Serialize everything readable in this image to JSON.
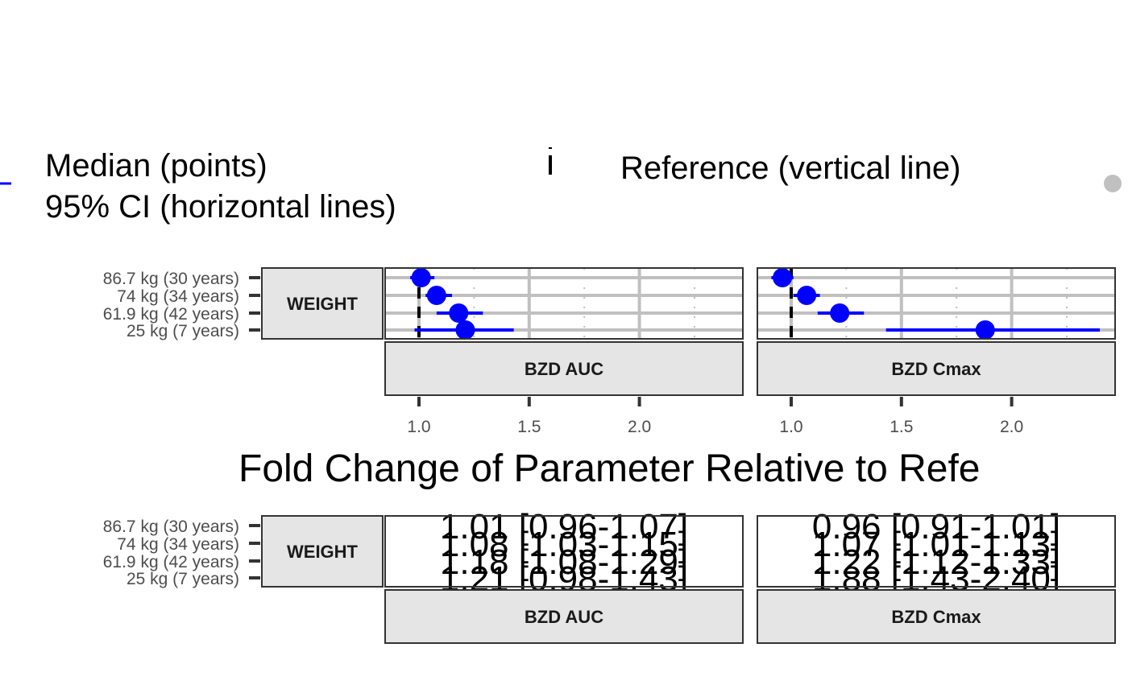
{
  "legend": {
    "median_label": "Median (points)",
    "ci_label": "95% CI (horizontal lines)",
    "reference_label": "Reference (vertical line)"
  },
  "colors": {
    "median": "#0000ff",
    "reference": "#000000",
    "strip_fill": "#e5e5e5",
    "grid": "#c0c0c0",
    "text": "#4d4d4d"
  },
  "chart_data": {
    "type": "scatter",
    "title": "Fold Change of Parameter Relative to Refe",
    "xlabel": "Fold Change of Parameter Relative to Refe",
    "row_strip": "WEIGHT",
    "categories": [
      "86.7 kg (30 years)",
      "74 kg (34 years)",
      "61.9 kg (42 years)",
      "25 kg (7 years)"
    ],
    "x_ticks": [
      "1.0",
      "1.5",
      "2.0"
    ],
    "xlim": [
      0.85,
      2.48
    ],
    "reference_x": 1.0,
    "grid": true,
    "panels": [
      {
        "name": "BZD AUC",
        "median": [
          1.01,
          1.08,
          1.18,
          1.21
        ],
        "lower": [
          0.96,
          1.03,
          1.08,
          0.98
        ],
        "upper": [
          1.07,
          1.15,
          1.29,
          1.43
        ],
        "labels": [
          "1.01 [0.96-1.07]",
          "1.08 [1.03-1.15]",
          "1.18 [1.08-1.29]",
          "1.21 [0.98-1.43]"
        ]
      },
      {
        "name": "BZD Cmax",
        "median": [
          0.96,
          1.07,
          1.22,
          1.88
        ],
        "lower": [
          0.91,
          1.01,
          1.12,
          1.43
        ],
        "upper": [
          1.01,
          1.13,
          1.33,
          2.4
        ],
        "labels": [
          "0.96 [0.91-1.01]",
          "1.07 [1.01-1.13]",
          "1.22 [1.12-1.33]",
          "1.88 [1.43-2.40]"
        ]
      }
    ]
  }
}
